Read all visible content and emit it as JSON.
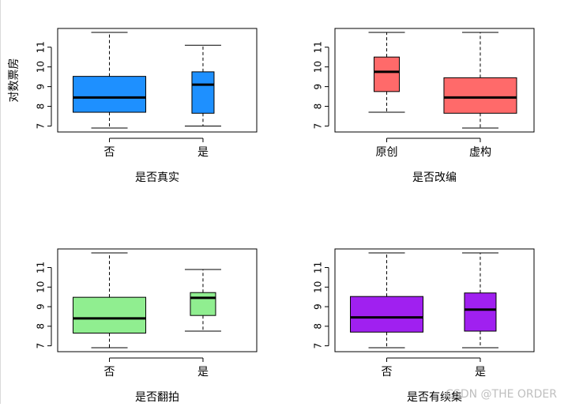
{
  "watermark": "CSDN @THE ORDER",
  "chart_data": [
    {
      "type": "boxplot",
      "xlabel": "是否真实",
      "ylabel": "对数票房",
      "ylim": [
        6.7,
        11.95
      ],
      "yticks": [
        7,
        8,
        9,
        10,
        11
      ],
      "color": "#1E90FF",
      "categories": [
        "否",
        "是"
      ],
      "boxes": [
        {
          "min": 6.9,
          "q1": 7.7,
          "median": 8.45,
          "q3": 9.52,
          "max": 11.75
        },
        {
          "min": 7.0,
          "q1": 7.65,
          "median": 9.1,
          "q3": 9.75,
          "max": 11.1
        }
      ]
    },
    {
      "type": "boxplot",
      "xlabel": "是否改编",
      "ylabel": "",
      "ylim": [
        6.7,
        11.95
      ],
      "yticks": [
        7,
        8,
        9,
        10,
        11
      ],
      "color": "#FF6A6A",
      "categories": [
        "原创",
        "虚构"
      ],
      "boxes": [
        {
          "min": 7.7,
          "q1": 8.75,
          "median": 9.75,
          "q3": 10.5,
          "max": 11.75
        },
        {
          "min": 6.9,
          "q1": 7.65,
          "median": 8.45,
          "q3": 9.45,
          "max": 11.75
        }
      ]
    },
    {
      "type": "boxplot",
      "xlabel": "是否翻拍",
      "ylabel": "",
      "ylim": [
        6.7,
        11.95
      ],
      "yticks": [
        7,
        8,
        9,
        10,
        11
      ],
      "color": "#90EE90",
      "categories": [
        "否",
        "是"
      ],
      "boxes": [
        {
          "min": 6.9,
          "q1": 7.65,
          "median": 8.4,
          "q3": 9.48,
          "max": 11.75
        },
        {
          "min": 7.75,
          "q1": 8.55,
          "median": 9.45,
          "q3": 9.72,
          "max": 10.9
        }
      ]
    },
    {
      "type": "boxplot",
      "xlabel": "是否有续集",
      "ylabel": "",
      "ylim": [
        6.7,
        11.95
      ],
      "yticks": [
        7,
        8,
        9,
        10,
        11
      ],
      "color": "#A020F0",
      "categories": [
        "否",
        "是"
      ],
      "boxes": [
        {
          "min": 6.9,
          "q1": 7.7,
          "median": 8.45,
          "q3": 9.52,
          "max": 11.75
        },
        {
          "min": 6.9,
          "q1": 7.75,
          "median": 8.85,
          "q3": 9.7,
          "max": 11.75
        }
      ]
    }
  ]
}
